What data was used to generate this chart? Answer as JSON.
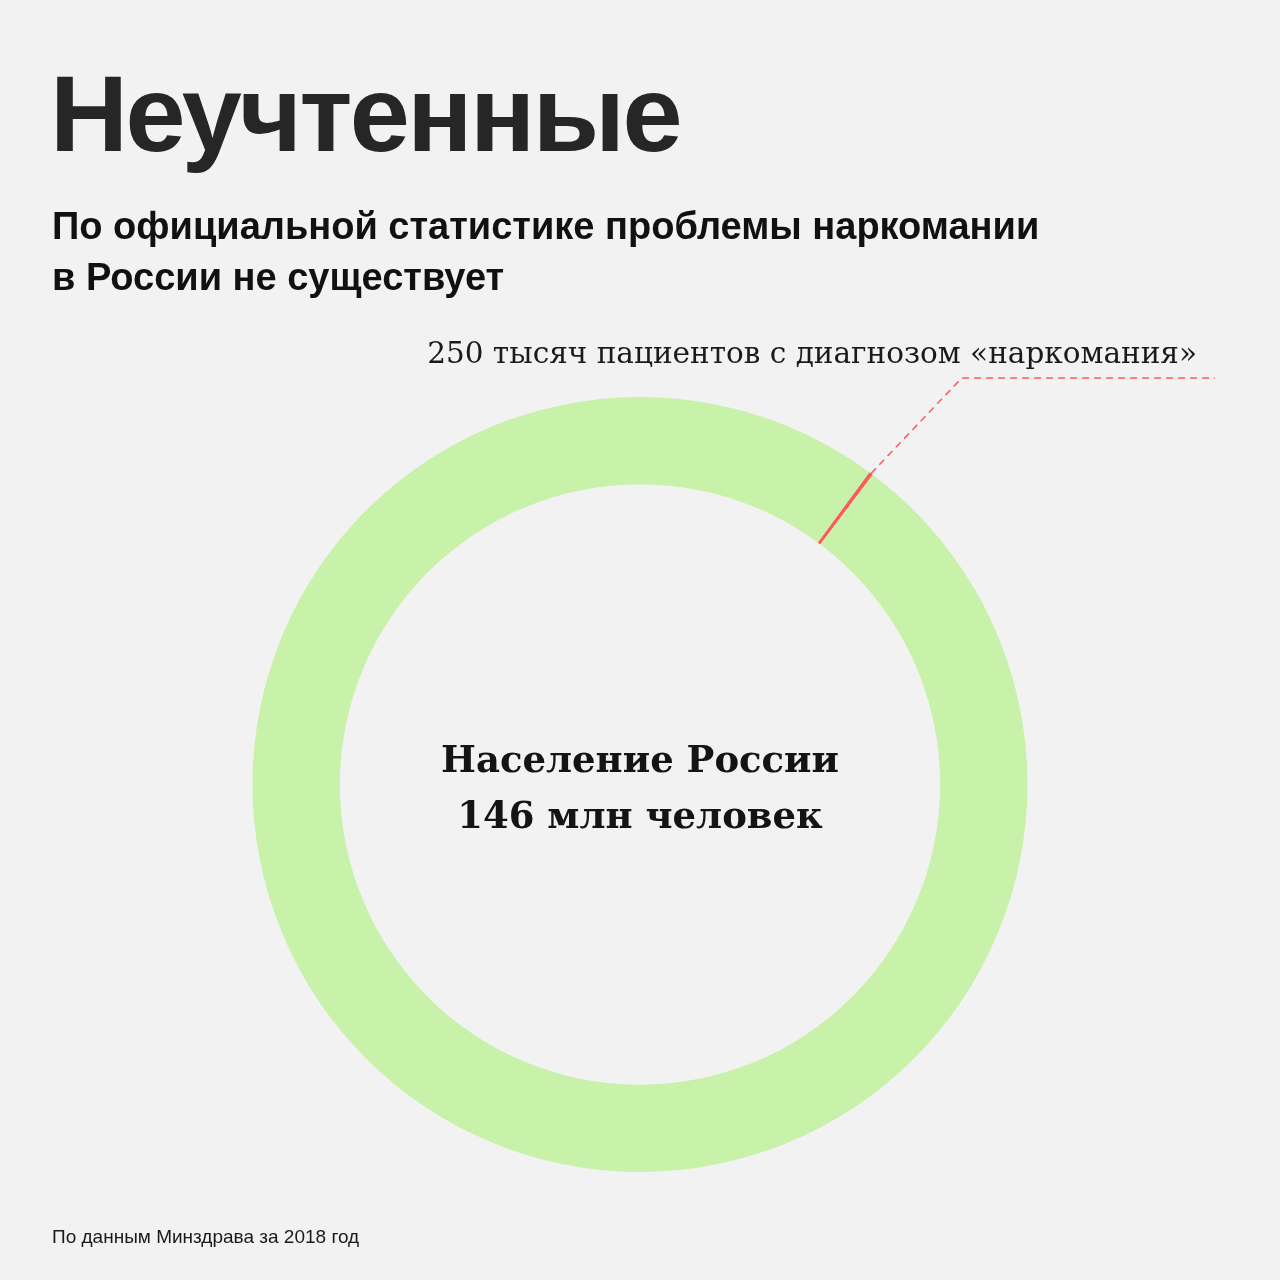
{
  "chart_data": {
    "type": "donut",
    "title": "Неучтенные",
    "subtitle": "По официальной статистике проблемы наркомании в России не существует",
    "categories": [
      "250 тысяч пациентов с диагнозом «наркомания»",
      "Население России 146 млн человек"
    ],
    "values": [
      0.25,
      146
    ],
    "colors": [
      "#ff5a5a",
      "#c8f2aa"
    ],
    "legend": false,
    "annotations": [
      "По данным Минздрава за 2018 год"
    ]
  }
}
